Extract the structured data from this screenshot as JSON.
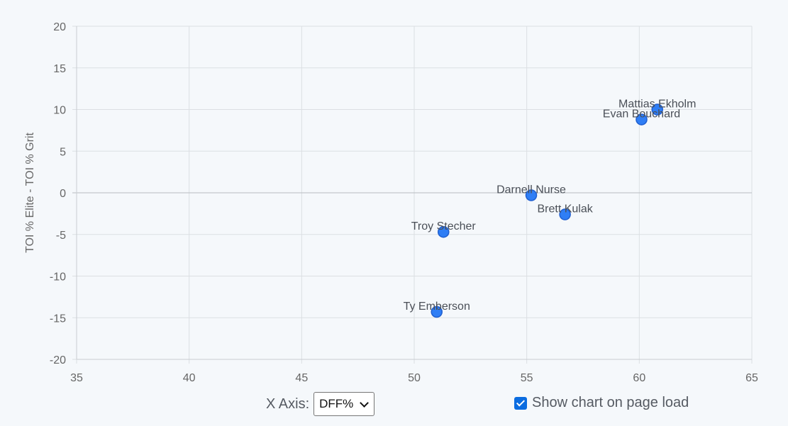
{
  "chart_data": {
    "type": "scatter",
    "title": "",
    "xlabel": "",
    "ylabel": "TOI % Elite - TOI % Grit",
    "xlim": [
      35,
      65
    ],
    "ylim": [
      -20,
      20
    ],
    "x_ticks": [
      35,
      40,
      45,
      50,
      55,
      60,
      65
    ],
    "y_ticks": [
      20,
      15,
      10,
      5,
      0,
      -5,
      -10,
      -15,
      -20
    ],
    "grid": true,
    "point_color": "#2f7ef5",
    "point_stroke": "#1f5fd0",
    "points": [
      {
        "label": "Mattias Ekholm",
        "x": 60.8,
        "y": 10.0
      },
      {
        "label": "Evan Bouchard",
        "x": 60.1,
        "y": 8.8
      },
      {
        "label": "Darnell Nurse",
        "x": 55.2,
        "y": -0.3
      },
      {
        "label": "Brett Kulak",
        "x": 56.7,
        "y": -2.6
      },
      {
        "label": "Troy Stecher",
        "x": 51.3,
        "y": -4.7
      },
      {
        "label": "Ty Emberson",
        "x": 51.0,
        "y": -14.3
      }
    ]
  },
  "controls": {
    "x_axis_label": "X Axis:",
    "x_axis_value": "DFF%",
    "show_chart_label": "Show chart on page load",
    "show_chart_checked": true
  }
}
